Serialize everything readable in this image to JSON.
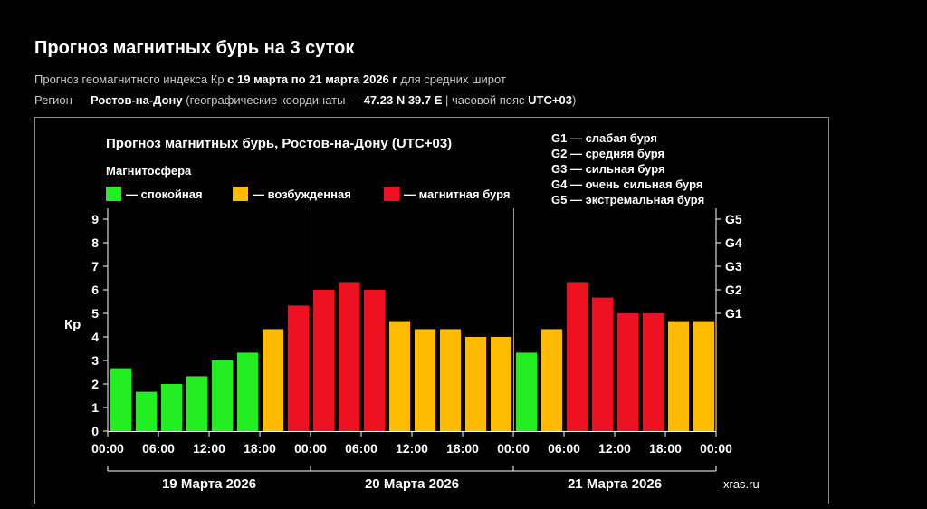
{
  "header": {
    "title": "Прогноз магнитных бурь на 3 суток",
    "line1": {
      "pre": "Прогноз геомагнитного индекса Кр ",
      "period": "с 19 марта по 21 марта 2026 г",
      "post": " для средних широт"
    },
    "line2": {
      "pre": "Регион — ",
      "region": "Ростов-на-Дону",
      "mid": " (географические координаты — ",
      "coords": "47.23 N 39.7 E",
      "mid2": " | часовой пояс ",
      "tz": "UTC+03",
      "post": ")"
    }
  },
  "colors": {
    "calm": "#22ee22",
    "excited": "#ffbb00",
    "storm": "#ee1122",
    "background": "#000000",
    "frame": "#8a8a8a",
    "text": "#ffffff"
  },
  "chart_data": {
    "type": "bar",
    "title": "Прогноз магнитных бурь, Ростов-на-Дону (UTC+03)",
    "ylabel": "Кр",
    "ylim": [
      0,
      9.5
    ],
    "yticks": [
      0,
      1,
      2,
      3,
      4,
      5,
      6,
      7,
      8,
      9
    ],
    "right_ticks": [
      {
        "label": "G1",
        "value": 5
      },
      {
        "label": "G2",
        "value": 6
      },
      {
        "label": "G3",
        "value": 7
      },
      {
        "label": "G4",
        "value": 8
      },
      {
        "label": "G5",
        "value": 9
      }
    ],
    "legend_title": "Магнитосфера",
    "legend": [
      {
        "label": "— спокойная",
        "color_key": "calm"
      },
      {
        "label": "— возбужденная",
        "color_key": "excited"
      },
      {
        "label": "— магнитная буря",
        "color_key": "storm"
      }
    ],
    "storm_scale": [
      "G1 — слабая буря",
      "G2 — средняя буря",
      "G3 — сильная буря",
      "G4 — очень сильная буря",
      "G5 — экстремальная буря"
    ],
    "x_tick_labels": [
      "00:00",
      "06:00",
      "12:00",
      "18:00",
      "00:00",
      "06:00",
      "12:00",
      "18:00",
      "00:00",
      "06:00",
      "12:00",
      "18:00",
      "00:00"
    ],
    "days": [
      "19 Марта 2026",
      "20 Марта 2026",
      "21 Марта 2026"
    ],
    "values": [
      2.67,
      1.67,
      2.0,
      2.33,
      3.0,
      3.33,
      4.33,
      5.33,
      6.0,
      6.33,
      6.0,
      4.67,
      4.33,
      4.33,
      4.0,
      4.0,
      3.33,
      4.33,
      6.33,
      5.67,
      5.0,
      5.0,
      4.67,
      4.67
    ],
    "levels": [
      "calm",
      "calm",
      "calm",
      "calm",
      "calm",
      "calm",
      "excited",
      "storm",
      "storm",
      "storm",
      "storm",
      "excited",
      "excited",
      "excited",
      "excited",
      "excited",
      "calm",
      "excited",
      "storm",
      "storm",
      "storm",
      "storm",
      "excited",
      "excited"
    ],
    "watermark": "xras.ru",
    "grid": false
  }
}
